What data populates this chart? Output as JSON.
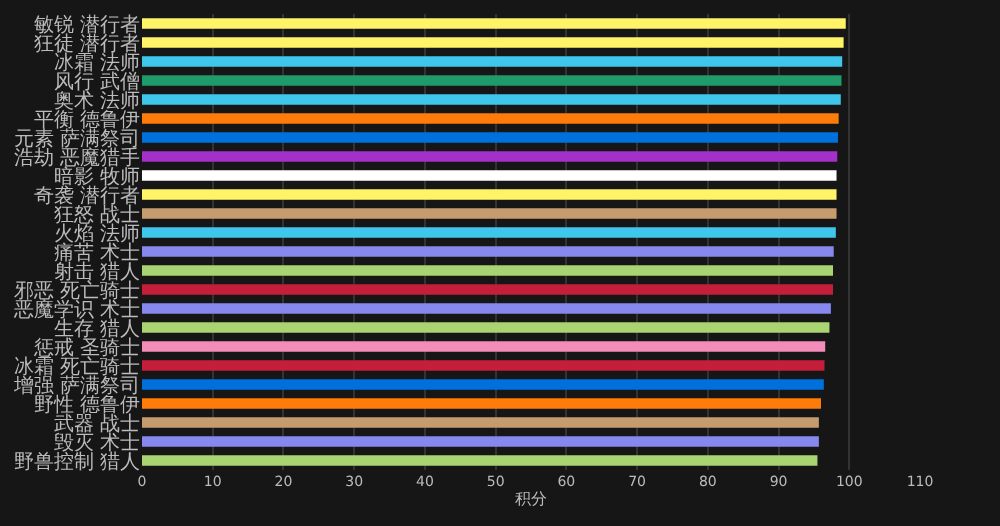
{
  "chart_data": {
    "type": "bar",
    "orientation": "horizontal",
    "xlabel": "积分",
    "categories": [
      "敏锐 潜行者",
      "狂徒 潜行者",
      "冰霜 法师",
      "风行 武僧",
      "奥术 法师",
      "平衡 德鲁伊",
      "元素 萨满祭司",
      "浩劫 恶魔猎手",
      "暗影 牧师",
      "奇袭 潜行者",
      "狂怒 战士",
      "火焰 法师",
      "痛苦 术士",
      "射击 猎人",
      "邪恶 死亡骑士",
      "恶魔学识 术士",
      "生存 猎人",
      "惩戒 圣骑士",
      "冰霜 死亡骑士",
      "增强 萨满祭司",
      "野性 德鲁伊",
      "武器 战士",
      "毁灭 术士",
      "野兽控制 猎人"
    ],
    "values": [
      99.5,
      99.2,
      99.0,
      98.9,
      98.8,
      98.5,
      98.4,
      98.3,
      98.2,
      98.2,
      98.2,
      98.1,
      97.8,
      97.7,
      97.7,
      97.4,
      97.2,
      96.6,
      96.5,
      96.4,
      96.0,
      95.7,
      95.7,
      95.5
    ],
    "colors": [
      "#fff468",
      "#fff468",
      "#3fc7eb",
      "#1f9a6a",
      "#3fc7eb",
      "#ff7c0a",
      "#0070dd",
      "#a330c9",
      "#ffffff",
      "#fff468",
      "#c69b6d",
      "#3fc7eb",
      "#8788ee",
      "#aad372",
      "#c41e3a",
      "#8788ee",
      "#aad372",
      "#f48cba",
      "#c41e3a",
      "#0070dd",
      "#ff7c0a",
      "#c69b6d",
      "#8788ee",
      "#aad372"
    ],
    "xlim": [
      0,
      110
    ],
    "xticks": [
      0,
      10,
      20,
      30,
      40,
      50,
      60,
      70,
      80,
      90,
      100,
      110
    ],
    "grid": "x"
  }
}
